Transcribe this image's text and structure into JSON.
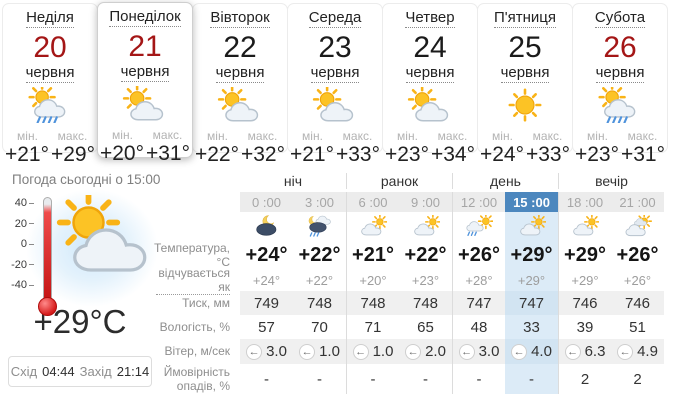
{
  "colors": {
    "accent_blue": "#4c87be",
    "highlight_blue": "#dcebf7",
    "date_red": "#a41616"
  },
  "labels": {
    "min": "мін.",
    "max": "макс."
  },
  "days": [
    {
      "name": "Неділя",
      "date": "20",
      "date_red": true,
      "month": "червня",
      "icon": "sun-cloud-rain",
      "min": "+21°",
      "max": "+29°"
    },
    {
      "name": "Понеділок",
      "date": "21",
      "date_red": true,
      "selected": true,
      "month": "червня",
      "icon": "sun-cloud",
      "min": "+20°",
      "max": "+31°"
    },
    {
      "name": "Вівторок",
      "date": "22",
      "month": "червня",
      "icon": "sun-cloud",
      "min": "+22°",
      "max": "+32°"
    },
    {
      "name": "Середа",
      "date": "23",
      "month": "червня",
      "icon": "sun-cloud",
      "min": "+21°",
      "max": "+33°"
    },
    {
      "name": "Четвер",
      "date": "24",
      "month": "червня",
      "icon": "sun-cloud",
      "min": "+23°",
      "max": "+34°"
    },
    {
      "name": "П'ятниця",
      "date": "25",
      "month": "червня",
      "icon": "sun",
      "min": "+24°",
      "max": "+33°"
    },
    {
      "name": "Субота",
      "date": "26",
      "date_red": true,
      "month": "червня",
      "icon": "sun-cloud-rain",
      "min": "+23°",
      "max": "+31°"
    }
  ],
  "today": {
    "title": "Погода сьогодні о 15:00",
    "thermometer_ticks": [
      "40",
      "20",
      "0",
      "-20",
      "-40"
    ],
    "icon": "sun-cloud",
    "temp": "+29°C",
    "sunrise_label": "Схід",
    "sunrise_time": "04:44",
    "sunset_label": "Захід",
    "sunset_time": "21:14"
  },
  "table": {
    "groups": [
      "ніч",
      "ранок",
      "день",
      "вечір"
    ],
    "highlight_index": 5,
    "wind_arrow": "←",
    "columns": [
      {
        "time": "0 :00",
        "icon": "moon-cloud"
      },
      {
        "time": "3 :00",
        "icon": "moon-cloud-rain"
      },
      {
        "time": "6 :00",
        "icon": "cloud-sun"
      },
      {
        "time": "9 :00",
        "icon": "cloud-sun"
      },
      {
        "time": "12 :00",
        "icon": "sun-rain"
      },
      {
        "time": "15 :00",
        "icon": "cloud-sun"
      },
      {
        "time": "18 :00",
        "icon": "cloud-sun"
      },
      {
        "time": "21 :00",
        "icon": "clouds-sun"
      }
    ],
    "rows": [
      {
        "label": "Температура, °C",
        "values": [
          "+24°",
          "+22°",
          "+21°",
          "+22°",
          "+26°",
          "+29°",
          "+29°",
          "+26°"
        ]
      },
      {
        "label": "відчувається як",
        "values": [
          "+24°",
          "+22°",
          "+20°",
          "+23°",
          "+28°",
          "+29°",
          "+29°",
          "+26°"
        ]
      },
      {
        "label": "Тиск, мм",
        "values": [
          "749",
          "748",
          "748",
          "748",
          "747",
          "747",
          "746",
          "746"
        ]
      },
      {
        "label": "Вологість, %",
        "values": [
          "57",
          "70",
          "71",
          "65",
          "48",
          "33",
          "39",
          "51"
        ]
      },
      {
        "label": "Вітер, м/сек",
        "values": [
          "3.0",
          "1.0",
          "1.0",
          "2.0",
          "3.0",
          "4.0",
          "6.3",
          "4.9"
        ]
      },
      {
        "label": "Ймовірність опадів, %",
        "values": [
          "-",
          "-",
          "-",
          "-",
          "-",
          "-",
          "2",
          "2"
        ]
      }
    ]
  }
}
